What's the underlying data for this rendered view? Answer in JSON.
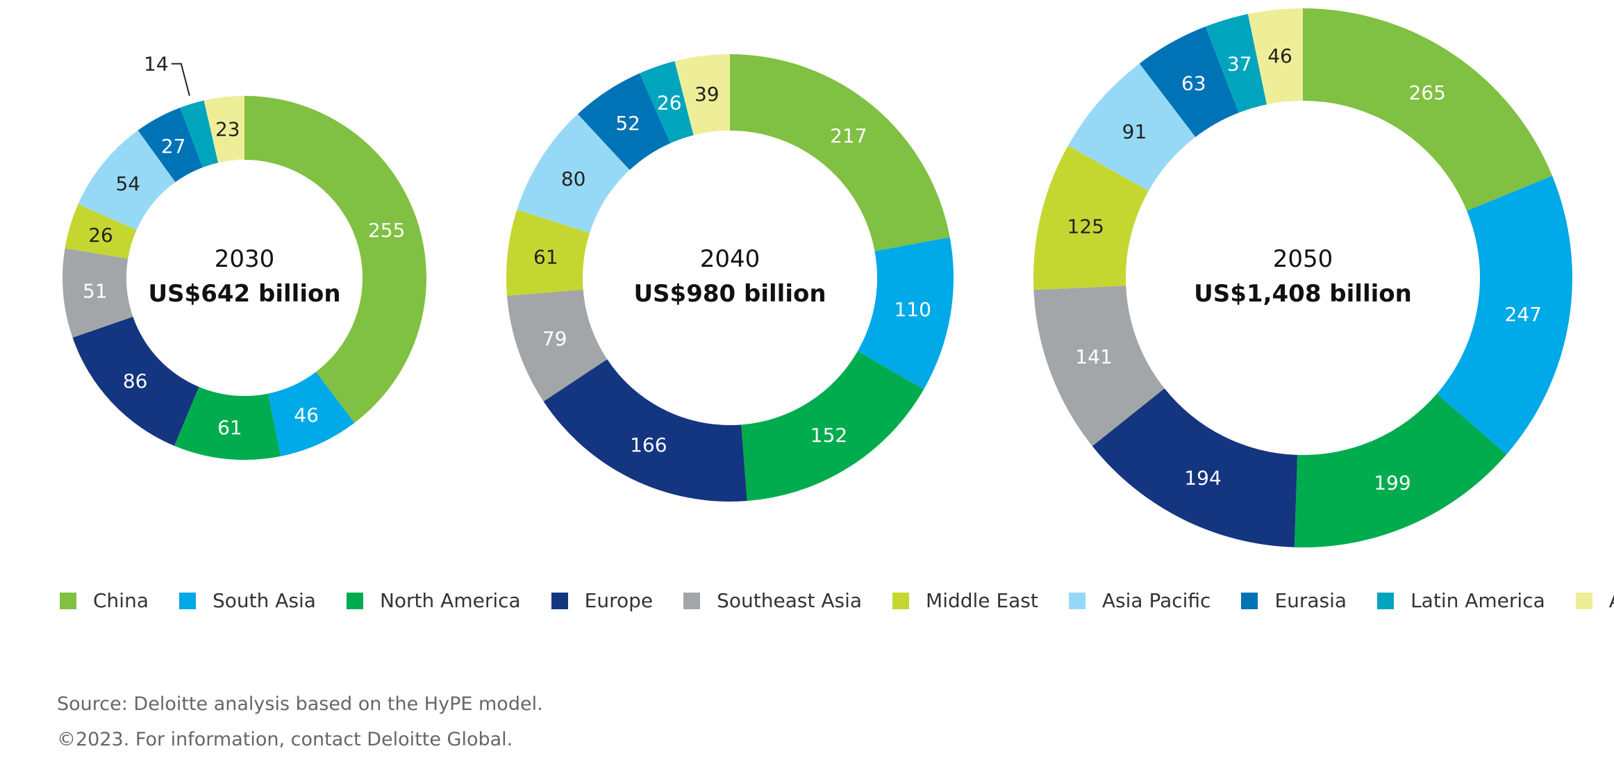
{
  "chart_data": [
    {
      "type": "pie",
      "subtype": "donut",
      "center_year": "2030",
      "center_total": "US$642 billion",
      "categories": [
        "China",
        "South Asia",
        "North America",
        "Europe",
        "Southeast Asia",
        "Middle East",
        "Asia Pacific",
        "Eurasia",
        "Latin America",
        "Africa"
      ],
      "values": [
        255,
        46,
        61,
        86,
        51,
        26,
        54,
        27,
        14,
        23
      ]
    },
    {
      "type": "pie",
      "subtype": "donut",
      "center_year": "2040",
      "center_total": "US$980 billion",
      "categories": [
        "China",
        "South Asia",
        "North America",
        "Europe",
        "Southeast Asia",
        "Middle East",
        "Asia Pacific",
        "Eurasia",
        "Latin America",
        "Africa"
      ],
      "values": [
        217,
        110,
        152,
        166,
        79,
        61,
        80,
        52,
        26,
        39
      ]
    },
    {
      "type": "pie",
      "subtype": "donut",
      "center_year": "2050",
      "center_total": "US$1,408 billion",
      "categories": [
        "China",
        "South Asia",
        "North America",
        "Europe",
        "Southeast Asia",
        "Middle East",
        "Asia Pacific",
        "Eurasia",
        "Latin America",
        "Africa"
      ],
      "values": [
        265,
        247,
        199,
        194,
        141,
        125,
        91,
        63,
        37,
        46
      ]
    }
  ],
  "legend": [
    {
      "name": "China",
      "color": "#80c042"
    },
    {
      "name": "South Asia",
      "color": "#00a9e8"
    },
    {
      "name": "North America",
      "color": "#00ac4e"
    },
    {
      "name": "Europe",
      "color": "#143580"
    },
    {
      "name": "Southeast Asia",
      "color": "#a3a6a8"
    },
    {
      "name": "Middle East",
      "color": "#c4d731"
    },
    {
      "name": "Asia Pacific",
      "color": "#96d9f7"
    },
    {
      "name": "Eurasia",
      "color": "#0073b6"
    },
    {
      "name": "Latin America",
      "color": "#00a5bd"
    },
    {
      "name": "Africa",
      "color": "#eeee99"
    }
  ],
  "label_text_colors": {
    "dark": "#222222",
    "light": "#ffffff"
  },
  "source_text": "Source: Deloitte analysis based on the HyPE model.",
  "copyright_text": "©2023. For information, contact Deloitte Global."
}
